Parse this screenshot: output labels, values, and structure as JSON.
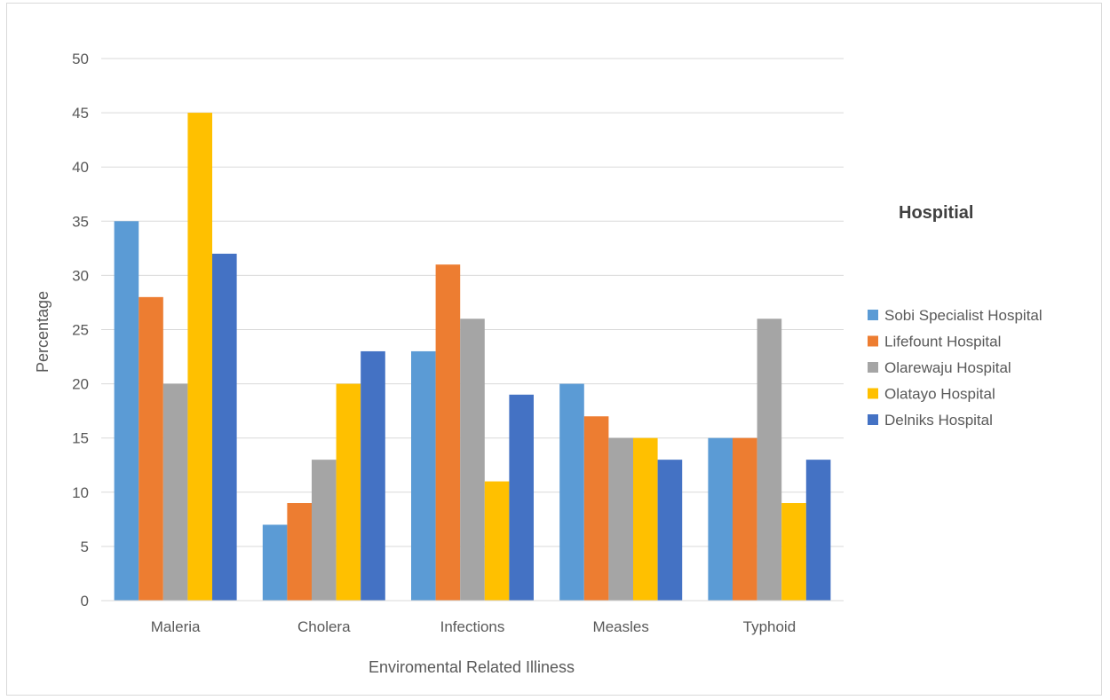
{
  "chart_data": {
    "type": "bar",
    "categories": [
      "Maleria",
      "Cholera",
      "Infections",
      "Measles",
      "Typhoid"
    ],
    "series": [
      {
        "name": "Sobi Specialist Hospital",
        "color": "#5b9bd5",
        "values": [
          35,
          7,
          23,
          20,
          15
        ]
      },
      {
        "name": "Lifefount Hospital",
        "color": "#ed7d31",
        "values": [
          28,
          9,
          31,
          17,
          15
        ]
      },
      {
        "name": "Olarewaju Hospital",
        "color": "#a5a5a5",
        "values": [
          20,
          13,
          26,
          15,
          26
        ]
      },
      {
        "name": "Olatayo Hospital",
        "color": "#ffc000",
        "values": [
          45,
          20,
          11,
          15,
          9
        ]
      },
      {
        "name": "Delniks Hospital",
        "color": "#4472c4",
        "values": [
          32,
          23,
          19,
          13,
          13
        ]
      }
    ],
    "xlabel": "Enviromental Related Illiness",
    "ylabel": "Percentage",
    "ylim": [
      0,
      50
    ],
    "yticks": [
      0,
      5,
      10,
      15,
      20,
      25,
      30,
      35,
      40,
      45,
      50
    ],
    "grid": true,
    "legend_title": "Hospitial",
    "legend_position": "right"
  }
}
